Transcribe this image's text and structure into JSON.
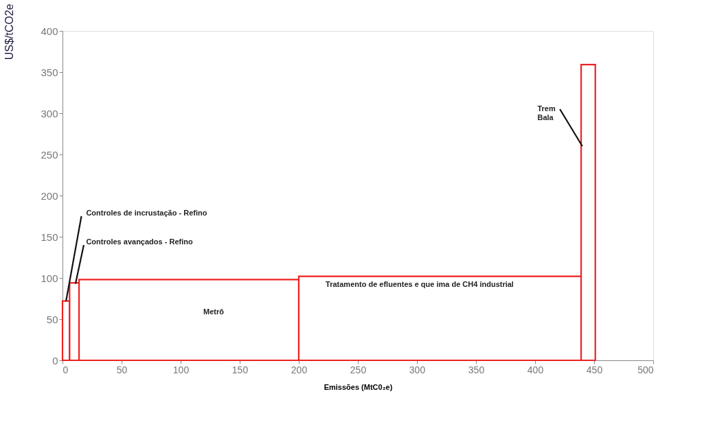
{
  "chart_data": {
    "type": "histogram",
    "xlabel": "Emissões (MtC0₂e)",
    "ylabel": "US$/tCO2e",
    "bins": [
      0,
      6,
      14,
      200,
      439,
      451
    ],
    "values": [
      72,
      94,
      98,
      102,
      359
    ],
    "color": "#ee2222",
    "xlim": [
      0,
      500
    ],
    "xticks": [
      0,
      50,
      100,
      150,
      200,
      250,
      300,
      350,
      400,
      450,
      500
    ],
    "ylim": [
      0,
      400
    ],
    "yticks": [
      0,
      50,
      100,
      150,
      200,
      250,
      300,
      350,
      400
    ],
    "grid": false,
    "annotations": [
      {
        "text": "Controles de incrustação  - Refino",
        "x": 3,
        "y": 72
      },
      {
        "text": "Controles avançados  - Refino",
        "x": 11,
        "y": 93
      },
      "Metrô",
      "Tratamento de  efluentes e  que ima de CH4 industrial",
      {
        "text": "Trem\nBala",
        "x": 440,
        "y": 260
      }
    ]
  }
}
